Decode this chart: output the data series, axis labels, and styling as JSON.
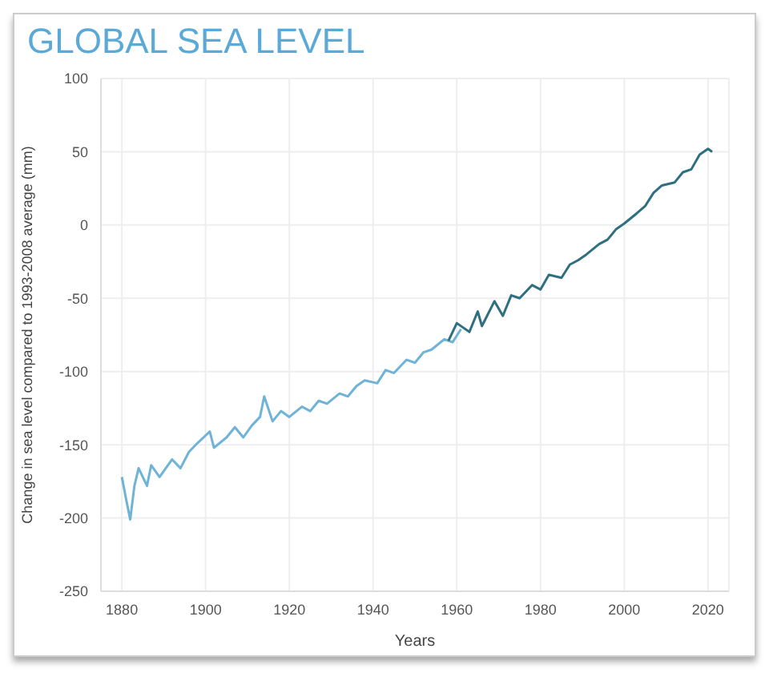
{
  "chart_data": {
    "type": "line",
    "title": "GLOBAL SEA LEVEL",
    "xlabel": "Years",
    "ylabel": "Change in sea level compared to 1993-2008 average (mm)",
    "xlim": [
      1875,
      2025
    ],
    "xticks": [
      1880,
      1900,
      1920,
      1940,
      1960,
      1980,
      2000,
      2020
    ],
    "ylim": [
      -250,
      100
    ],
    "yticks": [
      -250,
      -200,
      -150,
      -100,
      -50,
      0,
      50,
      100
    ],
    "grid": true,
    "series": [
      {
        "color": "#6fb3d6",
        "x": [
          1880,
          1881,
          1882,
          1883,
          1884,
          1886,
          1887,
          1889,
          1892,
          1894,
          1896,
          1898,
          1901,
          1902,
          1905,
          1907,
          1909,
          1911,
          1913,
          1914,
          1916,
          1918,
          1920,
          1923,
          1925,
          1927,
          1929,
          1932,
          1934,
          1936,
          1938,
          1941,
          1943,
          1945,
          1948,
          1950,
          1952,
          1954,
          1957,
          1959,
          1961
        ],
        "values": [
          -172,
          -187,
          -201,
          -178,
          -166,
          -178,
          -164,
          -172,
          -160,
          -166,
          -155,
          -149,
          -141,
          -152,
          -145,
          -138,
          -145,
          -137,
          -131,
          -117,
          -134,
          -127,
          -131,
          -124,
          -127,
          -120,
          -122,
          -115,
          -117,
          -110,
          -106,
          -108,
          -99,
          -101,
          -92,
          -94,
          -87,
          -85,
          -78,
          -80,
          -71
        ]
      },
      {
        "color": "#2e6f80",
        "x": [
          1958,
          1960,
          1963,
          1965,
          1966,
          1969,
          1971,
          1973,
          1975,
          1978,
          1980,
          1982,
          1985,
          1987,
          1989,
          1991,
          1994,
          1996,
          1998,
          2000,
          2003,
          2005,
          2007,
          2009,
          2012,
          2014,
          2016,
          2018,
          2020,
          2021
        ],
        "values": [
          -79,
          -67,
          -73,
          -59,
          -69,
          -52,
          -62,
          -48,
          -50,
          -41,
          -44,
          -34,
          -36,
          -27,
          -24,
          -20,
          -13,
          -10,
          -3,
          1,
          8,
          13,
          22,
          27,
          29,
          36,
          38,
          48,
          52,
          50
        ]
      }
    ]
  }
}
